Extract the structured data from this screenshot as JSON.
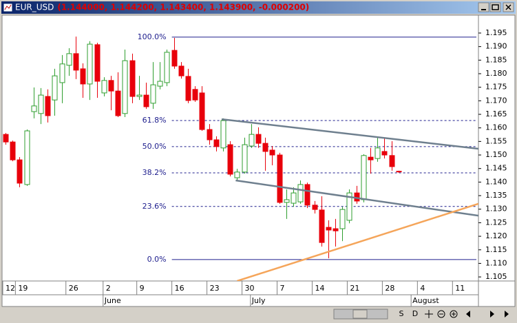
{
  "window": {
    "title": "EUR_USD",
    "quote": "(1.144000, 1.144200, 1.143400, 1.143900, -0.000200)"
  },
  "toolbar": {
    "buttons": [
      "S",
      "D"
    ]
  },
  "chart_data": {
    "type": "candlestick",
    "up_color": "#2e9e2e",
    "down_color": "#e8000b",
    "xlim": [
      -0.5,
      67.4
    ],
    "ylim": [
      1.1035,
      1.2016
    ],
    "yticks": [
      1.105,
      {
        "value": 1.11,
        "label": "1.110"
      },
      1.115,
      {
        "value": 1.12,
        "label": "1.120"
      },
      1.125,
      {
        "value": 1.13,
        "label": "1.130"
      },
      1.135,
      {
        "value": 1.14,
        "label": "1.140"
      },
      1.145,
      {
        "value": 1.15,
        "label": "1.150"
      },
      1.155,
      {
        "value": 1.16,
        "label": "1.160"
      },
      1.165,
      {
        "value": 1.17,
        "label": "1.170"
      },
      1.175,
      {
        "value": 1.18,
        "label": "1.180"
      },
      1.185,
      {
        "value": 1.19,
        "label": "1.190"
      },
      1.195
    ],
    "xticks": [
      {
        "value": -0.5,
        "label": "12"
      },
      {
        "value": 1.4,
        "label": "19"
      },
      {
        "value": 8.6,
        "label": "26"
      },
      {
        "value": 13.9,
        "label": "2"
      },
      {
        "value": 18.7,
        "label": "9"
      },
      {
        "value": 23.7,
        "label": "16"
      },
      {
        "value": 28.7,
        "label": "23"
      },
      {
        "value": 33.7,
        "label": "30"
      },
      {
        "value": 38.7,
        "label": "7"
      },
      {
        "value": 43.7,
        "label": "14"
      },
      {
        "value": 48.7,
        "label": "21"
      },
      {
        "value": 53.7,
        "label": "28"
      },
      {
        "value": 58.7,
        "label": "4"
      },
      {
        "value": 63.7,
        "label": "11"
      }
    ],
    "month_ticks": [
      {
        "value": 13.9,
        "label": "June"
      },
      {
        "value": 34.9,
        "label": "July"
      },
      {
        "value": 57.8,
        "label": "August"
      }
    ],
    "open": [
      1.1576,
      1.1548,
      1.1482,
      1.1391,
      1.166,
      1.1653,
      1.1716,
      1.1703,
      1.1767,
      1.1831,
      1.1874,
      1.1818,
      1.1762,
      1.1907,
      1.1729,
      1.1775,
      1.1736,
      1.1653,
      1.1848,
      1.1716,
      1.1721,
      1.1691,
      1.1754,
      1.1767,
      1.1886,
      1.1828,
      1.179,
      1.1742,
      1.1729,
      1.1594,
      1.1556,
      1.1526,
      1.1538,
      1.1416,
      1.1437,
      1.1533,
      1.1576,
      1.1543,
      1.1518,
      1.15,
      1.1325,
      1.1322,
      1.1327,
      1.1391,
      1.1315,
      1.1297,
      1.1233,
      1.1228,
      1.1228,
      1.1259,
      1.136,
      1.1335,
      1.1492,
      1.1487,
      1.1513,
      1.1498,
      1.144
    ],
    "high": [
      1.1581,
      1.1553,
      1.1492,
      1.1594,
      1.1749,
      1.1747,
      1.1742,
      1.1818,
      1.1869,
      1.1894,
      1.1937,
      1.1838,
      1.192,
      1.1914,
      1.1787,
      1.1792,
      1.1805,
      1.1889,
      1.1874,
      1.1792,
      1.1767,
      1.1843,
      1.1843,
      1.1889,
      1.1932,
      1.1843,
      1.1818,
      1.1754,
      1.1754,
      1.1614,
      1.1569,
      1.1635,
      1.1551,
      1.1449,
      1.1564,
      1.1614,
      1.1602,
      1.1564,
      1.1533,
      1.1508,
      1.1373,
      1.1381,
      1.1406,
      1.1398,
      1.133,
      1.1348,
      1.1259,
      1.1264,
      1.1309,
      1.1373,
      1.1386,
      1.1503,
      1.1526,
      1.1564,
      1.1564,
      1.1551,
      1.1442
    ],
    "low": [
      1.1538,
      1.1477,
      1.1381,
      1.1386,
      1.1635,
      1.1614,
      1.162,
      1.1645,
      1.1691,
      1.1792,
      1.178,
      1.1711,
      1.1703,
      1.1711,
      1.1716,
      1.1665,
      1.164,
      1.164,
      1.1691,
      1.1703,
      1.167,
      1.167,
      1.1742,
      1.1754,
      1.1818,
      1.1782,
      1.1691,
      1.1696,
      1.1589,
      1.1538,
      1.1513,
      1.1513,
      1.1421,
      1.1406,
      1.1431,
      1.1526,
      1.1526,
      1.1442,
      1.1462,
      1.132,
      1.1264,
      1.1309,
      1.132,
      1.1304,
      1.1284,
      1.1162,
      1.1119,
      1.1162,
      1.1182,
      1.1248,
      1.132,
      1.1325,
      1.1431,
      1.1475,
      1.1487,
      1.1442,
      1.1434
    ],
    "close": [
      1.1548,
      1.1482,
      1.1396,
      1.1589,
      1.1681,
      1.1721,
      1.1645,
      1.1792,
      1.1836,
      1.1874,
      1.1813,
      1.1762,
      1.1909,
      1.1772,
      1.1775,
      1.1736,
      1.1645,
      1.1848,
      1.1716,
      1.1721,
      1.1678,
      1.1759,
      1.1772,
      1.1879,
      1.1828,
      1.1792,
      1.1701,
      1.1703,
      1.1594,
      1.1556,
      1.1531,
      1.1627,
      1.1429,
      1.1437,
      1.1538,
      1.1576,
      1.1543,
      1.1513,
      1.15,
      1.1325,
      1.1335,
      1.136,
      1.1391,
      1.1315,
      1.1299,
      1.1177,
      1.1223,
      1.122,
      1.1299,
      1.136,
      1.133,
      1.1498,
      1.1482,
      1.1526,
      1.15,
      1.1457,
      1.1439
    ],
    "fib": {
      "color": "#1c1c8c",
      "start": 23.7,
      "levels": [
        {
          "label": "100.0%",
          "price": 1.1935,
          "solid": true
        },
        {
          "label": "61.8%",
          "price": 1.1627,
          "solid": false
        },
        {
          "label": "50.0%",
          "price": 1.1531,
          "solid": false
        },
        {
          "label": "38.2%",
          "price": 1.1434,
          "solid": false
        },
        {
          "label": "23.6%",
          "price": 1.131,
          "solid": false
        },
        {
          "label": "0.0%",
          "price": 1.1114,
          "solid": true
        }
      ]
    },
    "trendlines": [
      {
        "color": "#6e7f8e",
        "x": [
          30.8,
          67.4
        ],
        "y": [
          1.1632,
          1.1523
        ]
      },
      {
        "color": "#6e7f8e",
        "x": [
          32.8,
          67.4
        ],
        "y": [
          1.1406,
          1.1276
        ]
      },
      {
        "color": "#f5a55a",
        "x": [
          33.0,
          67.4
        ],
        "y": [
          1.1035,
          1.132
        ]
      }
    ]
  }
}
